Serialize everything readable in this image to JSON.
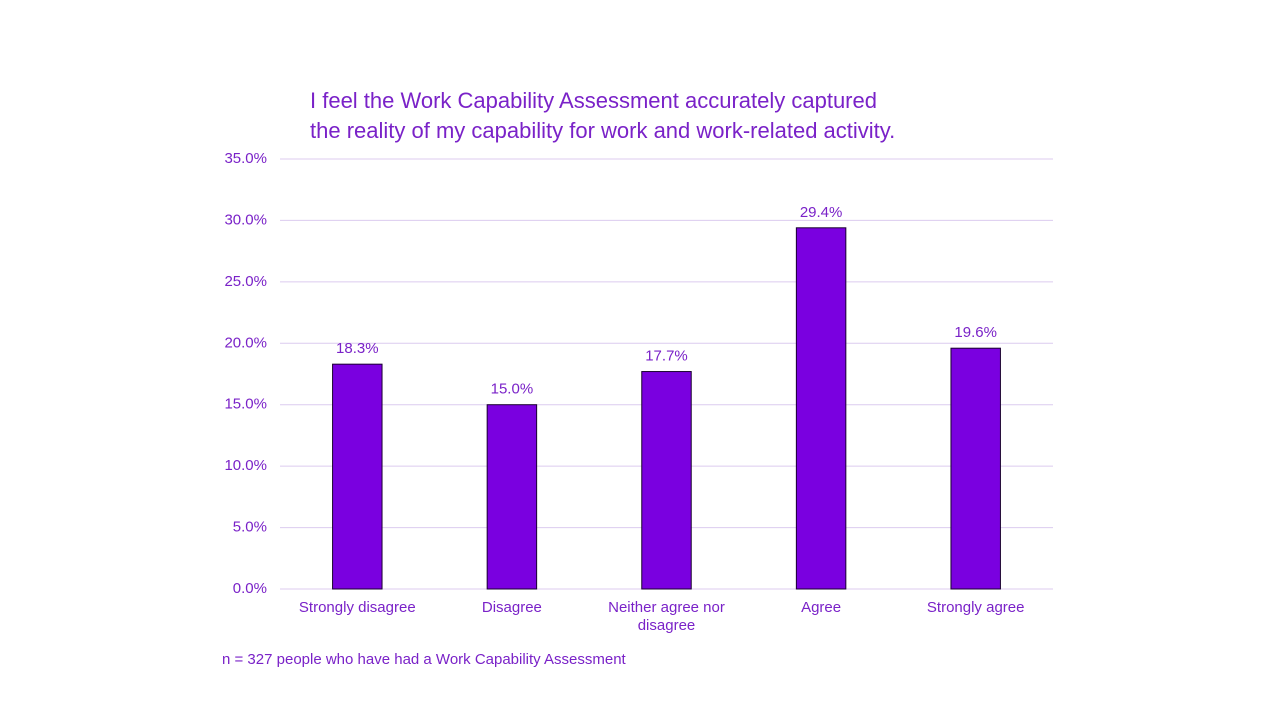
{
  "chart_data": {
    "type": "bar",
    "title": [
      "I feel the Work Capability Assessment accurately captured",
      "the reality of my capability for work and work-related activity."
    ],
    "categories": [
      "Strongly disagree",
      "Disagree",
      "Neither agree nor disagree",
      "Agree",
      "Strongly agree"
    ],
    "values": [
      18.3,
      15.0,
      17.7,
      29.4,
      19.6
    ],
    "value_labels": [
      "18.3%",
      "15.0%",
      "17.7%",
      "29.4%",
      "19.6%"
    ],
    "color": "#7a00e0",
    "ylim": [
      0,
      35
    ],
    "yticks": [
      {
        "value": 0,
        "label": "0.0%"
      },
      {
        "value": 5,
        "label": "5.0%"
      },
      {
        "value": 10,
        "label": "10.0%"
      },
      {
        "value": 15,
        "label": "15.0%"
      },
      {
        "value": 20,
        "label": "20.0%"
      },
      {
        "value": 25,
        "label": "25.0%"
      },
      {
        "value": 30,
        "label": "30.0%"
      },
      {
        "value": 35,
        "label": "35.0%"
      }
    ],
    "grid": true,
    "footnote": "n = 327 people who have had a Work Capability Assessment"
  }
}
